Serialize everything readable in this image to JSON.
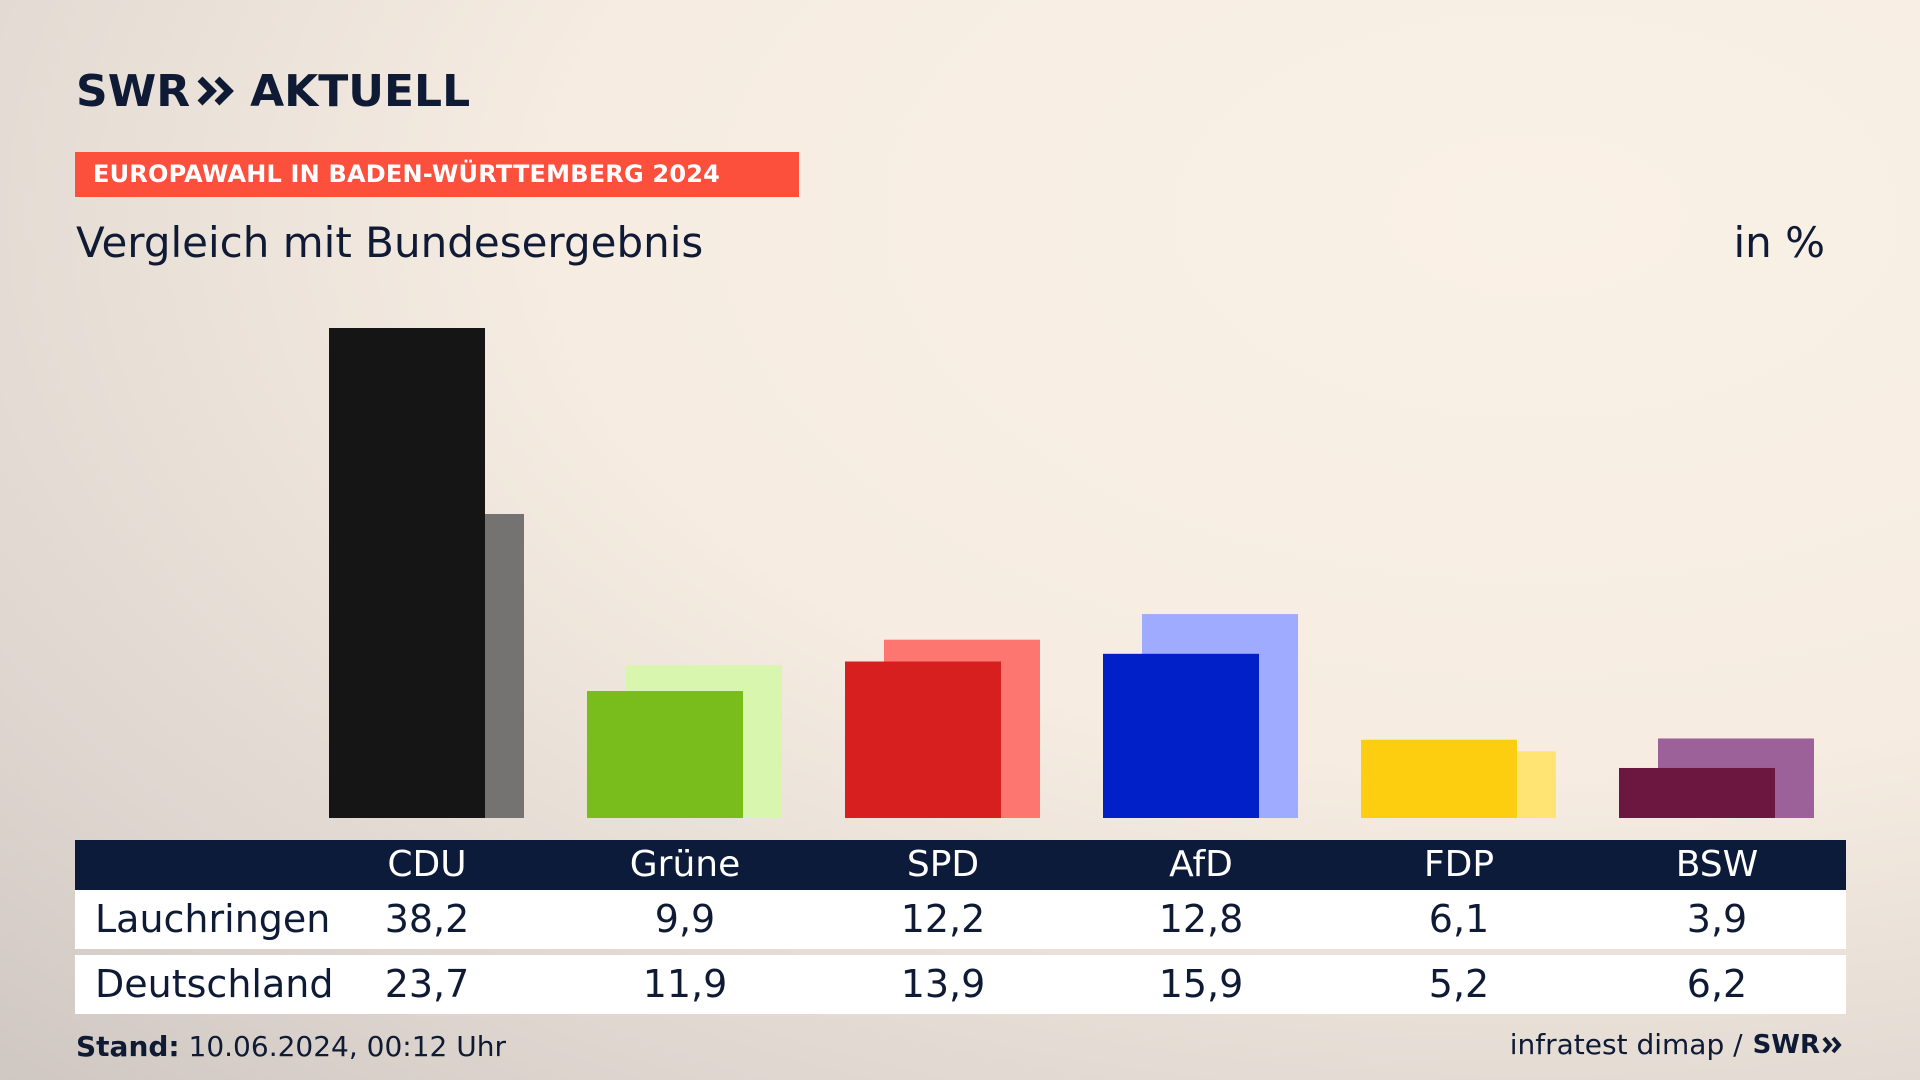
{
  "brand": {
    "name_left": "SWR",
    "name_right": "AKTUELL",
    "footer_logo": "SWR"
  },
  "kicker": "EUROPAWAHL IN BADEN-WÜRTTEMBERG 2024",
  "subtitle": "Vergleich mit Bundesergebnis",
  "unit": "in %",
  "footer": {
    "stand_label": "Stand:",
    "stand_value": "10.06.2024, 00:12 Uhr",
    "source": "infratest dimap /"
  },
  "table": {
    "row1_label": "Lauchringen",
    "row2_label": "Deutschland"
  },
  "chart_data": {
    "type": "bar",
    "categories": [
      "CDU",
      "Grüne",
      "SPD",
      "AfD",
      "FDP",
      "BSW"
    ],
    "series": [
      {
        "name": "Lauchringen",
        "values": [
          38.2,
          9.9,
          12.2,
          12.8,
          6.1,
          3.9
        ],
        "colors": [
          "#151515",
          "#79bd1c",
          "#d81f1f",
          "#0120c7",
          "#fdcd0f",
          "#6b1740"
        ]
      },
      {
        "name": "Deutschland",
        "values": [
          23.7,
          11.9,
          13.9,
          15.9,
          5.2,
          6.2
        ],
        "colors": [
          "#757371",
          "#d8f6ad",
          "#fe7670",
          "#9eabff",
          "#ffe373",
          "#9c6199"
        ]
      }
    ],
    "value_labels": {
      "Lauchringen": [
        "38,2",
        "9,9",
        "12,2",
        "12,8",
        "6,1",
        "3,9"
      ],
      "Deutschland": [
        "23,7",
        "11,9",
        "13,9",
        "15,9",
        "5,2",
        "6,2"
      ]
    },
    "ylim": [
      0,
      38.2
    ]
  }
}
